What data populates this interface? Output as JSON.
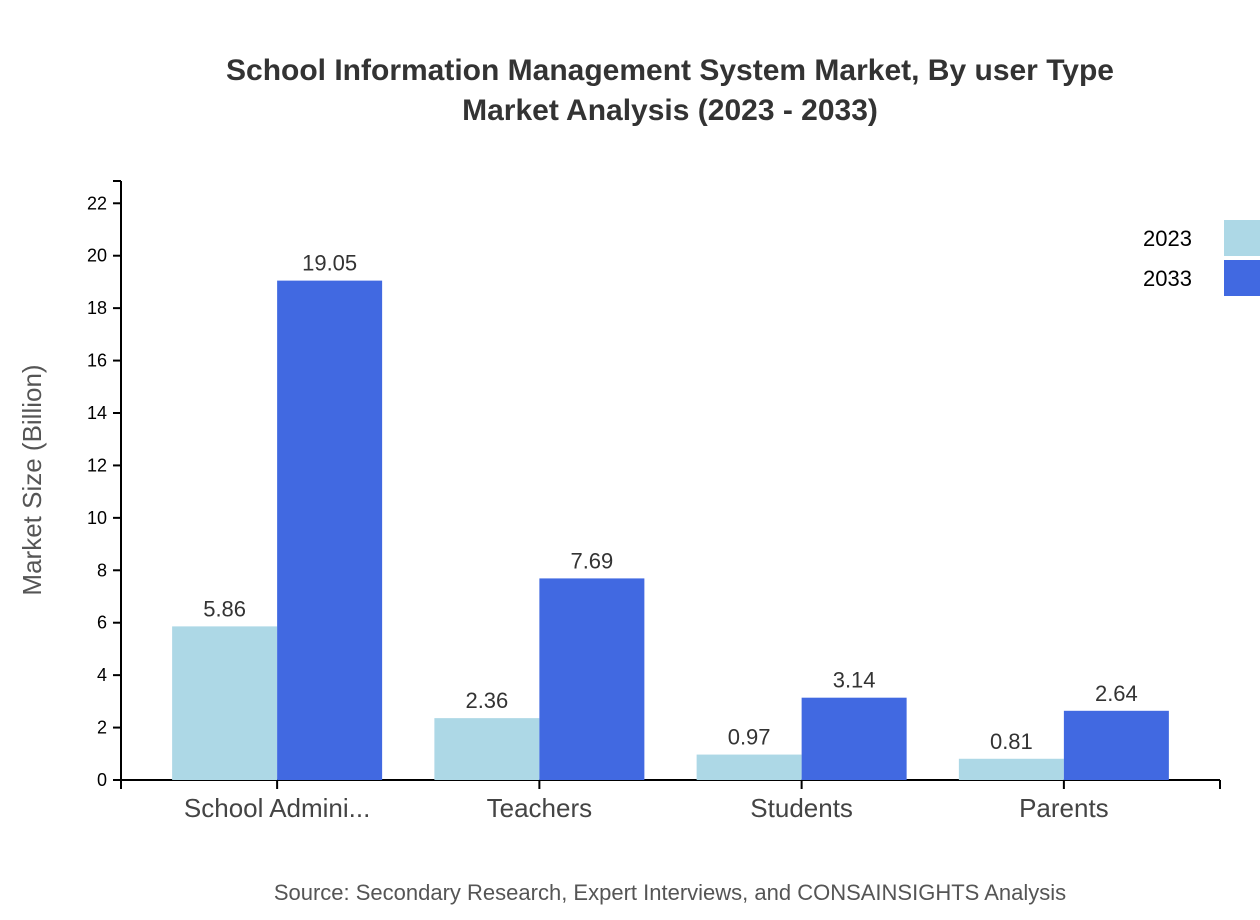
{
  "chart_data": {
    "type": "bar",
    "title": [
      "School Information Management System Market, By user Type",
      "Market Analysis (2023 - 2033)"
    ],
    "ylabel": "Market Size (Billion)",
    "xlabel": "",
    "source": "Source: Secondary Research, Expert Interviews, and CONSAINSIGHTS Analysis",
    "categories": [
      "School Admini...",
      "Teachers",
      "Students",
      "Parents"
    ],
    "yticks": [
      0,
      2,
      4,
      6,
      8,
      10,
      12,
      14,
      16,
      18,
      20,
      22
    ],
    "ylim": [
      0,
      22.85
    ],
    "grid": false,
    "legend_position": "top-right",
    "series": [
      {
        "name": "2023",
        "color": "#add8e6",
        "values": [
          5.86,
          2.36,
          0.97,
          0.81
        ]
      },
      {
        "name": "2033",
        "color": "#4169e1",
        "values": [
          19.05,
          7.69,
          3.14,
          2.64
        ]
      }
    ]
  }
}
